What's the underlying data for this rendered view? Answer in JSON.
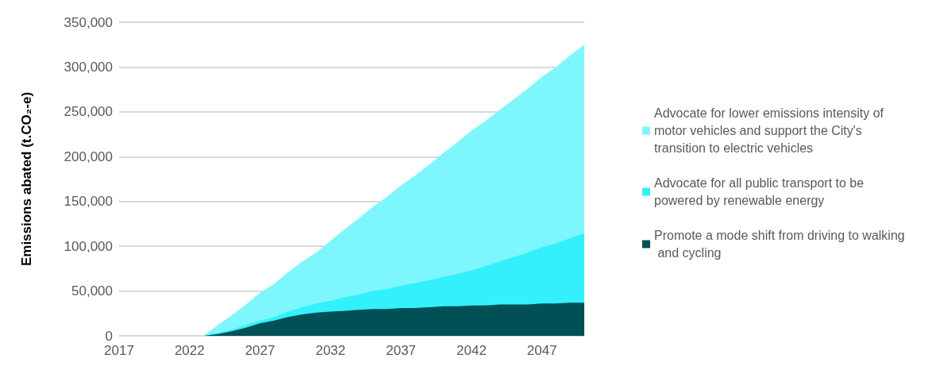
{
  "chart_data": {
    "type": "area",
    "stacked": true,
    "ylabel": "Emissions abated (t.CO₂-e)",
    "x": [
      2017,
      2018,
      2019,
      2020,
      2021,
      2022,
      2023,
      2024,
      2025,
      2026,
      2027,
      2028,
      2029,
      2030,
      2031,
      2032,
      2033,
      2034,
      2035,
      2036,
      2037,
      2038,
      2039,
      2040,
      2041,
      2042,
      2043,
      2044,
      2045,
      2046,
      2047,
      2048,
      2049,
      2050
    ],
    "xlim": [
      2017,
      2050
    ],
    "xticks": [
      2017,
      2022,
      2027,
      2032,
      2037,
      2042,
      2047
    ],
    "ylim": [
      0,
      350000
    ],
    "yticks": [
      0,
      {
        "value": 50000,
        "label": "50,000"
      },
      {
        "value": 100000,
        "label": "100,000"
      },
      {
        "value": 150000,
        "label": "150,000"
      },
      {
        "value": 200000,
        "label": "200,000"
      },
      {
        "value": 250000,
        "label": "250,000"
      },
      {
        "value": 300000,
        "label": "300,000"
      },
      {
        "value": 350000,
        "label": "350,000"
      }
    ],
    "grid": "y",
    "legend": "right",
    "series": [
      {
        "name": "Promote a mode shift from driving to walking and cycling",
        "color": "#005055",
        "values": [
          0,
          0,
          0,
          0,
          0,
          0,
          0,
          2000,
          5000,
          9000,
          14000,
          17000,
          21000,
          24000,
          26000,
          27000,
          28000,
          29000,
          30000,
          30000,
          31000,
          31000,
          32000,
          33000,
          33000,
          34000,
          34000,
          35000,
          35000,
          35000,
          36000,
          36000,
          37000,
          37000
        ]
      },
      {
        "name": "Advocate for all public transport to be powered by renewable energy",
        "color": "#33f0fc",
        "values": [
          0,
          0,
          0,
          0,
          0,
          0,
          0,
          1000,
          2000,
          3000,
          3000,
          4000,
          6000,
          8000,
          10000,
          12000,
          15000,
          17000,
          20000,
          22000,
          25000,
          28000,
          30000,
          33000,
          36000,
          39000,
          44000,
          48000,
          53000,
          58000,
          63000,
          67000,
          72000,
          77000
        ]
      },
      {
        "name": "Advocate for lower emissions intensity of motor vehicles and support the City's transition to electric vehicles",
        "color": "#7ef6fd",
        "values": [
          0,
          0,
          0,
          0,
          0,
          0,
          0,
          9000,
          16000,
          23000,
          31000,
          37000,
          44000,
          51000,
          57000,
          67000,
          76000,
          85000,
          94000,
          103000,
          112000,
          120000,
          129000,
          138000,
          147000,
          156000,
          162000,
          169000,
          176000,
          183000,
          190000,
          197000,
          204000,
          211000
        ]
      }
    ]
  }
}
